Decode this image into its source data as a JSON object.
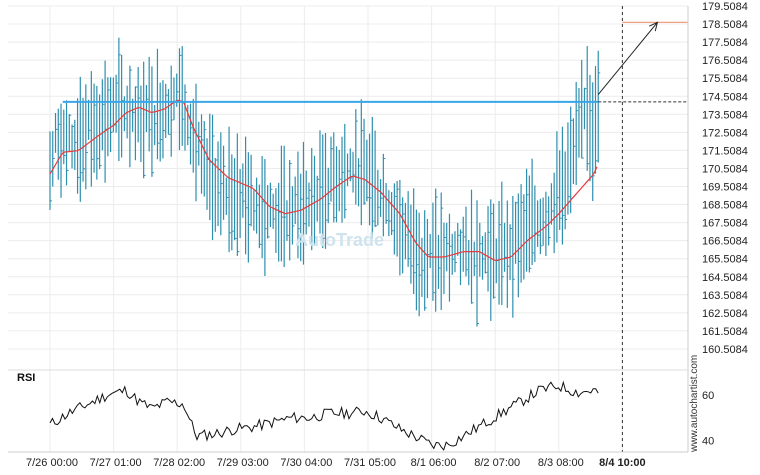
{
  "chart_data": {
    "type": "line",
    "subtype": "high-low bars with moving average, RSI sub-panel",
    "title": "",
    "xlabel": "",
    "ylabel": "",
    "ylim": [
      159.5084,
      179.5084
    ],
    "y_ticks": [
      "179.5084",
      "178.5084",
      "177.5084",
      "176.5084",
      "175.5084",
      "174.5084",
      "173.5084",
      "172.5084",
      "171.5084",
      "170.5084",
      "169.5084",
      "168.5084",
      "167.5084",
      "166.5084",
      "165.5084",
      "164.5084",
      "163.5084",
      "162.5084",
      "161.5084",
      "160.5084"
    ],
    "x_ticks": [
      "7/26 00:00",
      "7/27 01:00",
      "7/28 02:00",
      "7/29 03:00",
      "7/30 04:00",
      "7/31 05:00",
      "8/1 06:00",
      "8/2 07:00",
      "8/3 08:00",
      "8/4 10:00"
    ],
    "x_range": [
      0,
      9
    ],
    "price_anchors": [
      {
        "x": 0.0,
        "y": 170.3
      },
      {
        "x": 0.1,
        "y": 172.2
      },
      {
        "x": 0.35,
        "y": 171.8
      },
      {
        "x": 0.7,
        "y": 172.9
      },
      {
        "x": 1.0,
        "y": 173.7
      },
      {
        "x": 1.2,
        "y": 173.8
      },
      {
        "x": 1.4,
        "y": 173.5
      },
      {
        "x": 1.7,
        "y": 173.6
      },
      {
        "x": 1.95,
        "y": 174.4
      },
      {
        "x": 2.05,
        "y": 174.6
      },
      {
        "x": 2.2,
        "y": 173.2
      },
      {
        "x": 2.4,
        "y": 170.5
      },
      {
        "x": 2.7,
        "y": 169.2
      },
      {
        "x": 3.0,
        "y": 169.0
      },
      {
        "x": 3.3,
        "y": 168.5
      },
      {
        "x": 3.6,
        "y": 167.9
      },
      {
        "x": 3.9,
        "y": 168.2
      },
      {
        "x": 4.2,
        "y": 169.0
      },
      {
        "x": 4.5,
        "y": 170.1
      },
      {
        "x": 4.75,
        "y": 170.6
      },
      {
        "x": 5.0,
        "y": 170.2
      },
      {
        "x": 5.3,
        "y": 168.7
      },
      {
        "x": 5.6,
        "y": 166.8
      },
      {
        "x": 5.8,
        "y": 165.8
      },
      {
        "x": 6.0,
        "y": 165.5
      },
      {
        "x": 6.2,
        "y": 165.7
      },
      {
        "x": 6.5,
        "y": 166.0
      },
      {
        "x": 6.8,
        "y": 165.9
      },
      {
        "x": 7.0,
        "y": 165.6
      },
      {
        "x": 7.2,
        "y": 166.0
      },
      {
        "x": 7.5,
        "y": 167.2
      },
      {
        "x": 7.8,
        "y": 168.0
      },
      {
        "x": 8.0,
        "y": 169.0
      },
      {
        "x": 8.2,
        "y": 170.8
      },
      {
        "x": 8.35,
        "y": 173.0
      },
      {
        "x": 8.45,
        "y": 174.2
      },
      {
        "x": 8.52,
        "y": 172.2
      },
      {
        "x": 8.58,
        "y": 173.8
      },
      {
        "x": 8.62,
        "y": 173.5
      }
    ],
    "moving_average_anchors": [
      {
        "x": 0.0,
        "y": 170.2
      },
      {
        "x": 0.2,
        "y": 171.4
      },
      {
        "x": 0.45,
        "y": 171.5
      },
      {
        "x": 0.75,
        "y": 172.3
      },
      {
        "x": 1.0,
        "y": 172.9
      },
      {
        "x": 1.2,
        "y": 173.6
      },
      {
        "x": 1.4,
        "y": 173.9
      },
      {
        "x": 1.6,
        "y": 173.6
      },
      {
        "x": 1.8,
        "y": 173.8
      },
      {
        "x": 2.0,
        "y": 174.3
      },
      {
        "x": 2.1,
        "y": 174.2
      },
      {
        "x": 2.25,
        "y": 172.8
      },
      {
        "x": 2.5,
        "y": 171.0
      },
      {
        "x": 2.8,
        "y": 170.0
      },
      {
        "x": 3.0,
        "y": 169.7
      },
      {
        "x": 3.2,
        "y": 169.4
      },
      {
        "x": 3.45,
        "y": 168.4
      },
      {
        "x": 3.7,
        "y": 168.0
      },
      {
        "x": 3.95,
        "y": 168.2
      },
      {
        "x": 4.25,
        "y": 168.8
      },
      {
        "x": 4.5,
        "y": 169.5
      },
      {
        "x": 4.75,
        "y": 170.1
      },
      {
        "x": 4.95,
        "y": 169.9
      },
      {
        "x": 5.2,
        "y": 169.2
      },
      {
        "x": 5.5,
        "y": 168.0
      },
      {
        "x": 5.75,
        "y": 166.4
      },
      {
        "x": 5.95,
        "y": 165.6
      },
      {
        "x": 6.2,
        "y": 165.6
      },
      {
        "x": 6.5,
        "y": 165.9
      },
      {
        "x": 6.75,
        "y": 165.9
      },
      {
        "x": 7.0,
        "y": 165.4
      },
      {
        "x": 7.25,
        "y": 165.6
      },
      {
        "x": 7.5,
        "y": 166.5
      },
      {
        "x": 7.8,
        "y": 167.3
      },
      {
        "x": 8.0,
        "y": 168.0
      },
      {
        "x": 8.2,
        "y": 168.8
      },
      {
        "x": 8.4,
        "y": 169.6
      },
      {
        "x": 8.55,
        "y": 170.2
      },
      {
        "x": 8.6,
        "y": 170.6
      }
    ],
    "horizontal_level": 174.2,
    "projection": {
      "from": {
        "x": 8.62,
        "y": 174.6
      },
      "to": {
        "x": 9.55,
        "y": 178.6
      }
    },
    "target_level": 178.6,
    "series_colors": {
      "bars": "#2f8faf",
      "moving_average": "#e53b3b",
      "level": "#3aa6e8",
      "target": "#f0a080",
      "rsi": "#111111",
      "projection": "#222222"
    },
    "rsi_panel": {
      "title": "RSI",
      "ylim": [
        35,
        70
      ],
      "y_ticks": [
        "60",
        "40"
      ],
      "anchors": [
        {
          "x": 0.0,
          "y": 47
        },
        {
          "x": 0.3,
          "y": 52
        },
        {
          "x": 0.6,
          "y": 56
        },
        {
          "x": 0.9,
          "y": 60
        },
        {
          "x": 1.2,
          "y": 62
        },
        {
          "x": 1.4,
          "y": 57
        },
        {
          "x": 1.6,
          "y": 54
        },
        {
          "x": 1.85,
          "y": 57
        },
        {
          "x": 2.1,
          "y": 56
        },
        {
          "x": 2.3,
          "y": 42
        },
        {
          "x": 2.6,
          "y": 43
        },
        {
          "x": 2.9,
          "y": 45
        },
        {
          "x": 3.2,
          "y": 46
        },
        {
          "x": 3.5,
          "y": 48
        },
        {
          "x": 3.8,
          "y": 50
        },
        {
          "x": 4.1,
          "y": 50
        },
        {
          "x": 4.4,
          "y": 52
        },
        {
          "x": 4.7,
          "y": 52
        },
        {
          "x": 4.95,
          "y": 53
        },
        {
          "x": 5.2,
          "y": 50
        },
        {
          "x": 5.5,
          "y": 45
        },
        {
          "x": 5.8,
          "y": 41
        },
        {
          "x": 6.0,
          "y": 38
        },
        {
          "x": 6.25,
          "y": 38
        },
        {
          "x": 6.5,
          "y": 42
        },
        {
          "x": 6.8,
          "y": 47
        },
        {
          "x": 7.1,
          "y": 52
        },
        {
          "x": 7.4,
          "y": 57
        },
        {
          "x": 7.7,
          "y": 62
        },
        {
          "x": 8.0,
          "y": 64
        },
        {
          "x": 8.3,
          "y": 61
        },
        {
          "x": 8.55,
          "y": 62
        },
        {
          "x": 8.62,
          "y": 61
        }
      ]
    },
    "watermark": "AutoTrade",
    "site_label": "www.autochartist.com"
  }
}
